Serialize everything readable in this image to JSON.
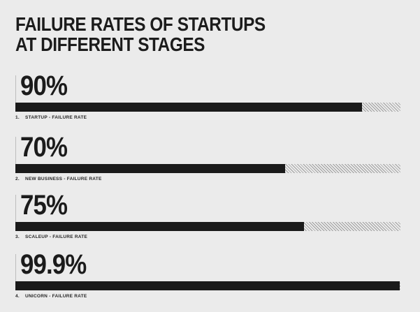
{
  "page": {
    "background": "#ebebeb"
  },
  "colors": {
    "bar_fill": "#1a1a1a",
    "hatch_line": "#9e9e9e",
    "tick_line": "#bdbdbd",
    "text": "#1c1c1c"
  },
  "title": {
    "line1": "FAILURE RATES OF STARTUPS",
    "line2": "AT DIFFERENT STAGES"
  },
  "chart_data": {
    "type": "bar",
    "orientation": "horizontal",
    "title": "FAILURE RATES OF STARTUPS AT DIFFERENT STAGES",
    "unit": "%",
    "xlim": [
      0,
      100
    ],
    "grid": false,
    "legend": false,
    "style_note": "solid black fill for value, diagonal hatch for remainder to 100%",
    "series": [
      {
        "index": "1.",
        "category": "STARTUP",
        "caption": "STARTUP - FAILURE RATE",
        "value": 90,
        "value_label": "90%"
      },
      {
        "index": "2.",
        "category": "NEW BUSINESS",
        "caption": "NEW BUSINESS - FAILURE RATE",
        "value": 70,
        "value_label": "70%"
      },
      {
        "index": "3.",
        "category": "SCALEUP",
        "caption": "SCALEUP - FAILURE RATE",
        "value": 75,
        "value_label": "75%"
      },
      {
        "index": "4.",
        "category": "UNICORN",
        "caption": "UNICORN - FAILURE RATE",
        "value": 99.9,
        "value_label": "99.9%"
      }
    ]
  }
}
